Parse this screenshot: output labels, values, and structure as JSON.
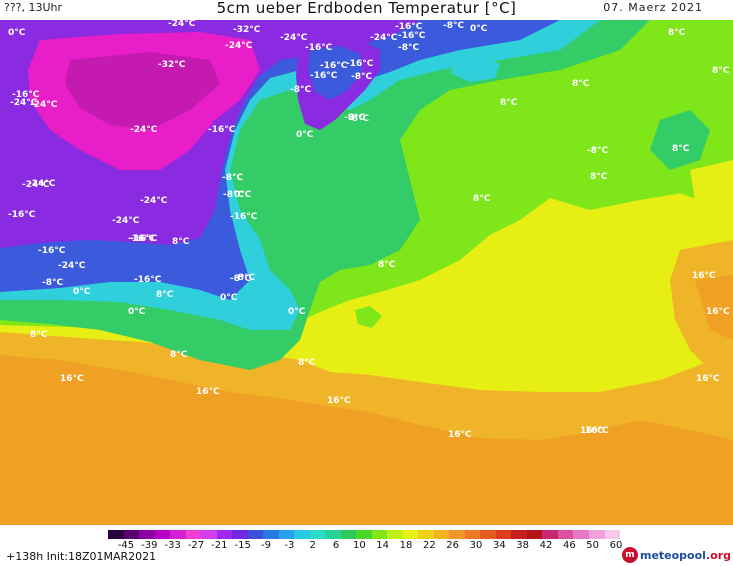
{
  "header": {
    "left_text": "???, 13Uhr",
    "title": "5cm ueber Erdboden Temperatur [°C]",
    "date": "07. Maerz 2021"
  },
  "map": {
    "labels": [
      "0°C",
      "-24°C",
      "-32°C",
      "-24°C",
      "-24°C",
      "-16°C",
      "-8°C",
      "-16°C",
      "-24°C",
      "-24°C",
      "-24°C",
      "-16°C",
      "-32°C",
      "-16°C",
      "-16°C",
      "-8°C",
      "-8°C",
      "-16°C",
      "0°C",
      "8°C",
      "8°C",
      "8°C",
      "8°C",
      "-8°C",
      "-16°C",
      "-24°C",
      "-16°C",
      "-24°C",
      "-24°C",
      "-24°C",
      "-16°C",
      "-8°C",
      "-8°C",
      "0°C",
      "0°C",
      "8°C",
      "-16°C",
      "-24°C",
      "-24°C",
      "-16°C",
      "-16°C",
      "-16°C",
      "-8°C",
      "8°C",
      "-16°C",
      "-8°C",
      "8°C",
      "0°C",
      "-8°C",
      "-8°C",
      "0°C",
      "0°C",
      "8°C",
      "8°C",
      "8°C",
      "-8°C",
      "0°C",
      "8°C",
      "8°C",
      "16°C",
      "16°C",
      "16°C",
      "16°C",
      "16°C",
      "16°C",
      "16°C",
      "16°C",
      "-8°C",
      "8°C",
      "16°C"
    ],
    "land_colors": {
      "deep_cold": "#e81ec8",
      "cold": "#8a2be2",
      "cool": "#3c5adc",
      "freezing": "#2fd0dc",
      "mild": "#33cc66",
      "warm": "#7fe61a",
      "warmer": "#e6ee14",
      "hot": "#f0a024"
    }
  },
  "legend": {
    "tick_labels": [
      "-45",
      "-39",
      "-33",
      "-27",
      "-21",
      "-15",
      "-9",
      "-3",
      "2",
      "6",
      "10",
      "14",
      "18",
      "22",
      "26",
      "30",
      "34",
      "38",
      "42",
      "46",
      "50",
      "60"
    ],
    "colors": [
      "#2a0040",
      "#5a0070",
      "#8a00a0",
      "#b400c8",
      "#d81ed2",
      "#f03cd0",
      "#d23cf0",
      "#a028f0",
      "#6e28e6",
      "#3c50dc",
      "#2878e6",
      "#28a0f0",
      "#28c8e6",
      "#28dcc8",
      "#28d296",
      "#2dc85a",
      "#4bd728",
      "#82e619",
      "#bef014",
      "#e6f014",
      "#f0d214",
      "#f0b41e",
      "#f09628",
      "#f07828",
      "#e65a1e",
      "#dc3c1e",
      "#c81e1e",
      "#b41414",
      "#c8286e",
      "#dc50a0",
      "#e678c8",
      "#f0a0dc",
      "#f5c8ec"
    ]
  },
  "footer": {
    "init": "+138h  Init:18Z01MAR2021",
    "logo_mark": "m",
    "logo_text_main": "meteopool",
    "logo_text_tld": ".org"
  }
}
